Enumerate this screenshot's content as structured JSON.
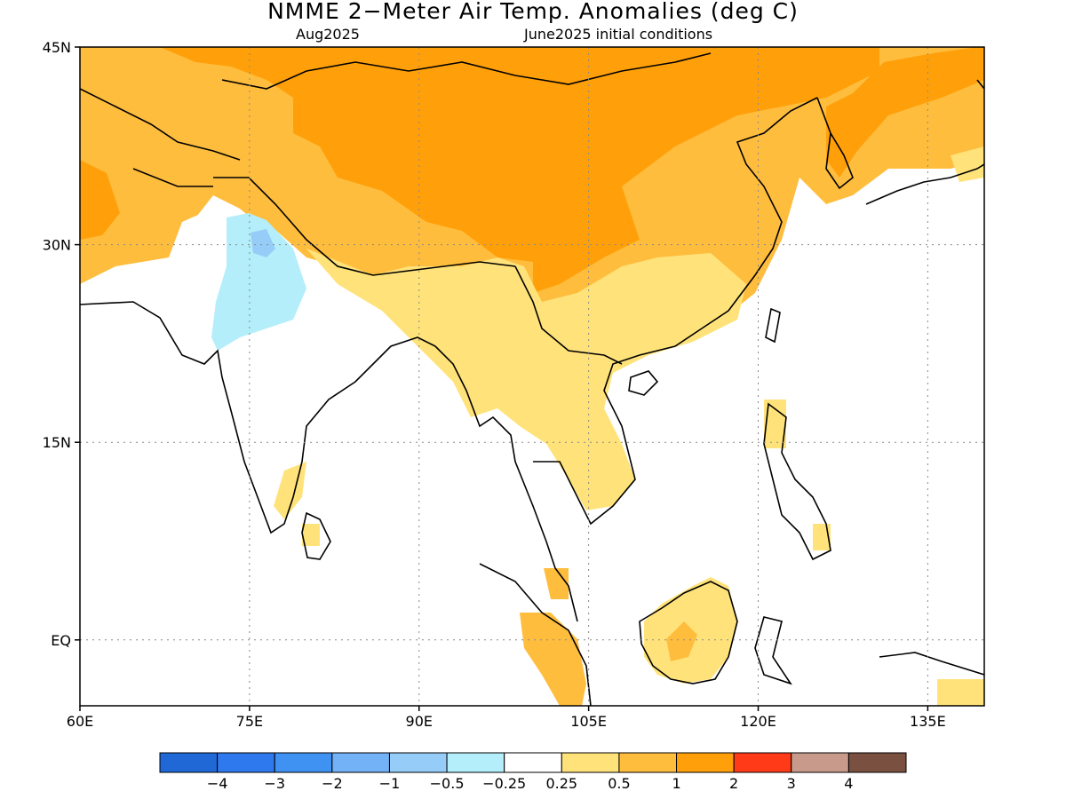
{
  "title": "NMME 2−Meter Air Temp. Anomalies (deg C)",
  "subtitle_left": "Aug2025",
  "subtitle_right": "June2025 initial conditions",
  "map": {
    "lon_range": [
      60,
      140
    ],
    "lat_range": [
      -5,
      45
    ],
    "lon_ticks": [
      {
        "v": 60,
        "label": "60E"
      },
      {
        "v": 75,
        "label": "75E"
      },
      {
        "v": 90,
        "label": "90E"
      },
      {
        "v": 105,
        "label": "105E"
      },
      {
        "v": 120,
        "label": "120E"
      },
      {
        "v": 135,
        "label": "135E"
      }
    ],
    "lat_ticks": [
      {
        "v": 45,
        "label": "45N"
      },
      {
        "v": 30,
        "label": "30N"
      },
      {
        "v": 15,
        "label": "15N"
      },
      {
        "v": 0,
        "label": "EQ"
      }
    ],
    "grid": "dotted"
  },
  "colorbar": {
    "colors": [
      "#1f68d6",
      "#2f79ee",
      "#3f91f2",
      "#73b2f6",
      "#96cdf8",
      "#b4eefa",
      "#ffffff",
      "#ffe37a",
      "#ffbd3e",
      "#ffa00a",
      "#ff3a18",
      "#c89a8c",
      "#7a5040"
    ],
    "labels": [
      "−4",
      "−3",
      "−2",
      "−1",
      "−0.5",
      "−0.25",
      "0.25",
      "0.5",
      "1",
      "2",
      "3",
      "4"
    ]
  }
}
